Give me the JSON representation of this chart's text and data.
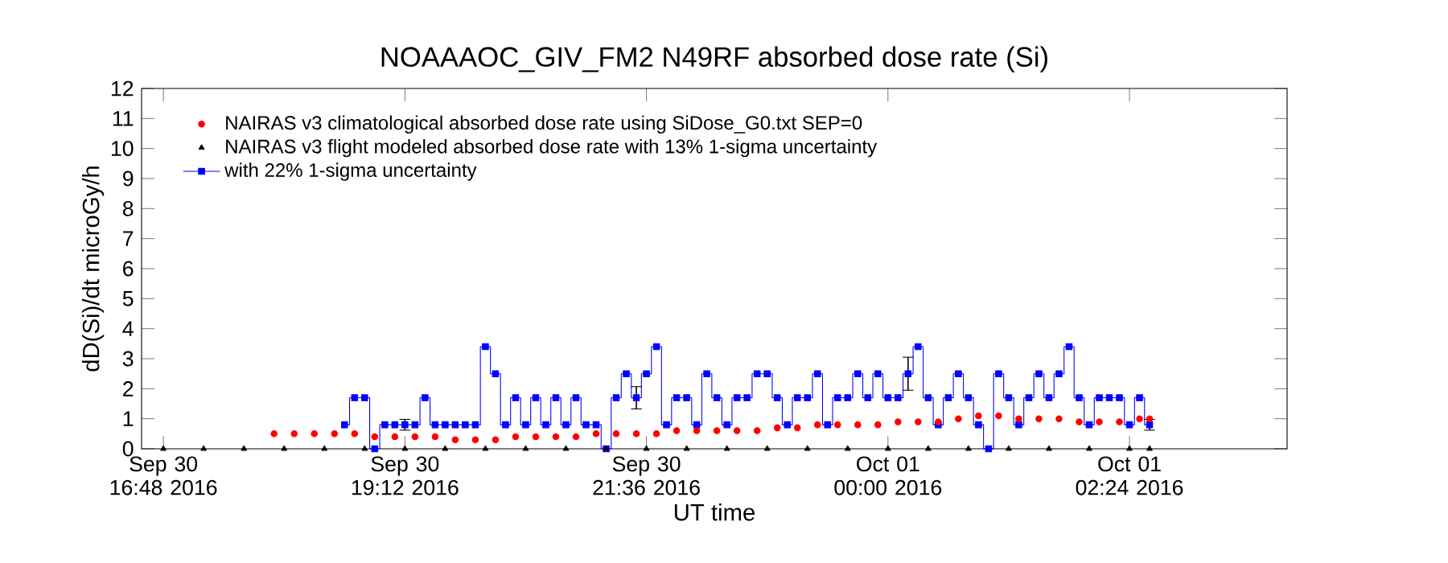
{
  "chart_data": {
    "type": "step",
    "title": "NOAAAOC_GIV_FM2   N49RF  absorbed dose rate (Si)",
    "xlabel": "UT time",
    "ylabel": "dD(Si)/dt microGy/h",
    "xlim": [
      "2016-09-30T16:35",
      "2016-10-01T03:58"
    ],
    "ylim": [
      0,
      12
    ],
    "xticks": [
      {
        "value": "2016-09-30T16:48",
        "label": "Sep 30 16:48 2016"
      },
      {
        "value": "2016-09-30T19:12",
        "label": "Sep 30 19:12 2016"
      },
      {
        "value": "2016-09-30T21:36",
        "label": "Sep 30 21:36 2016"
      },
      {
        "value": "2016-10-01T00:00",
        "label": "Oct 01 00:00 2016"
      },
      {
        "value": "2016-10-01T02:24",
        "label": "Oct 01 02:24 2016"
      }
    ],
    "yticks": [
      0,
      1,
      2,
      3,
      4,
      5,
      6,
      7,
      8,
      9,
      10,
      11,
      12
    ],
    "legend": "top left",
    "series": [
      {
        "name": "NAIRAS v3 climatological absorbed dose rate using SiDose_G0.txt SEP=0",
        "type": "scatter",
        "marker": "circle",
        "color": "#ff0000",
        "x": [
          "2016-09-30T17:54",
          "2016-09-30T18:06",
          "2016-09-30T18:18",
          "2016-09-30T18:30",
          "2016-09-30T18:42",
          "2016-09-30T18:54",
          "2016-09-30T19:06",
          "2016-09-30T19:18",
          "2016-09-30T19:30",
          "2016-09-30T19:42",
          "2016-09-30T19:54",
          "2016-09-30T20:06",
          "2016-09-30T20:18",
          "2016-09-30T20:30",
          "2016-09-30T20:42",
          "2016-09-30T20:54",
          "2016-09-30T21:06",
          "2016-09-30T21:18",
          "2016-09-30T21:30",
          "2016-09-30T21:42",
          "2016-09-30T21:54",
          "2016-09-30T22:06",
          "2016-09-30T22:18",
          "2016-09-30T22:30",
          "2016-09-30T22:42",
          "2016-09-30T22:54",
          "2016-09-30T23:06",
          "2016-09-30T23:18",
          "2016-09-30T23:30",
          "2016-09-30T23:42",
          "2016-09-30T23:54",
          "2016-10-01T00:06",
          "2016-10-01T00:18",
          "2016-10-01T00:30",
          "2016-10-01T00:42",
          "2016-10-01T00:54",
          "2016-10-01T01:06",
          "2016-10-01T01:18",
          "2016-10-01T01:30",
          "2016-10-01T01:42",
          "2016-10-01T01:54",
          "2016-10-01T02:06",
          "2016-10-01T02:18",
          "2016-10-01T02:30",
          "2016-10-01T02:36"
        ],
        "values": [
          0.5,
          0.5,
          0.5,
          0.5,
          0.5,
          0.4,
          0.4,
          0.4,
          0.4,
          0.3,
          0.3,
          0.3,
          0.4,
          0.4,
          0.4,
          0.4,
          0.5,
          0.5,
          0.5,
          0.5,
          0.6,
          0.6,
          0.6,
          0.6,
          0.6,
          0.7,
          0.7,
          0.8,
          0.8,
          0.8,
          0.8,
          0.9,
          0.9,
          0.9,
          1.0,
          1.1,
          1.1,
          1.0,
          1.0,
          1.0,
          0.9,
          0.9,
          0.9,
          1.0,
          1.0
        ]
      },
      {
        "name": "NAIRAS v3 flight modeled absorbed dose rate with 13% 1-sigma uncertainty",
        "type": "scatter",
        "marker": "triangle",
        "color": "#000000",
        "x": [
          "2016-09-30T16:48",
          "2016-09-30T17:12",
          "2016-09-30T17:36",
          "2016-09-30T18:00",
          "2016-09-30T18:24",
          "2016-09-30T18:48",
          "2016-09-30T19:12",
          "2016-09-30T19:36",
          "2016-09-30T20:00",
          "2016-09-30T20:24",
          "2016-09-30T20:48",
          "2016-09-30T21:12",
          "2016-09-30T21:36",
          "2016-09-30T22:00",
          "2016-09-30T22:24",
          "2016-09-30T22:48",
          "2016-09-30T23:12",
          "2016-09-30T23:36",
          "2016-10-01T00:00",
          "2016-10-01T00:24",
          "2016-10-01T00:48",
          "2016-10-01T01:12",
          "2016-10-01T01:36",
          "2016-10-01T02:00",
          "2016-10-01T02:24",
          "2016-10-01T02:36"
        ],
        "values": [
          0,
          0,
          0,
          0,
          0,
          0,
          0,
          0,
          0,
          0,
          0,
          0,
          0,
          0,
          0,
          0,
          0,
          0,
          0,
          0,
          0,
          0,
          0,
          0,
          0,
          0
        ]
      },
      {
        "name": "with 22% 1-sigma uncertainty",
        "marker": "square",
        "color": "#0000ff",
        "x": [
          "2016-09-30T18:36",
          "2016-09-30T18:42",
          "2016-09-30T18:48",
          "2016-09-30T18:54",
          "2016-09-30T19:00",
          "2016-09-30T19:06",
          "2016-09-30T19:12",
          "2016-09-30T19:18",
          "2016-09-30T19:24",
          "2016-09-30T19:30",
          "2016-09-30T19:36",
          "2016-09-30T19:42",
          "2016-09-30T19:48",
          "2016-09-30T19:54",
          "2016-09-30T20:00",
          "2016-09-30T20:06",
          "2016-09-30T20:12",
          "2016-09-30T20:18",
          "2016-09-30T20:24",
          "2016-09-30T20:30",
          "2016-09-30T20:36",
          "2016-09-30T20:42",
          "2016-09-30T20:48",
          "2016-09-30T20:54",
          "2016-09-30T21:00",
          "2016-09-30T21:06",
          "2016-09-30T21:12",
          "2016-09-30T21:18",
          "2016-09-30T21:24",
          "2016-09-30T21:30",
          "2016-09-30T21:36",
          "2016-09-30T21:42",
          "2016-09-30T21:48",
          "2016-09-30T21:54",
          "2016-09-30T22:00",
          "2016-09-30T22:06",
          "2016-09-30T22:12",
          "2016-09-30T22:18",
          "2016-09-30T22:24",
          "2016-09-30T22:30",
          "2016-09-30T22:36",
          "2016-09-30T22:42",
          "2016-09-30T22:48",
          "2016-09-30T22:54",
          "2016-09-30T23:00",
          "2016-09-30T23:06",
          "2016-09-30T23:12",
          "2016-09-30T23:18",
          "2016-09-30T23:24",
          "2016-09-30T23:30",
          "2016-09-30T23:36",
          "2016-09-30T23:42",
          "2016-09-30T23:48",
          "2016-09-30T23:54",
          "2016-10-01T00:00",
          "2016-10-01T00:06",
          "2016-10-01T00:12",
          "2016-10-01T00:18",
          "2016-10-01T00:24",
          "2016-10-01T00:30",
          "2016-10-01T00:36",
          "2016-10-01T00:42",
          "2016-10-01T00:48",
          "2016-10-01T00:54",
          "2016-10-01T01:00",
          "2016-10-01T01:06",
          "2016-10-01T01:12",
          "2016-10-01T01:18",
          "2016-10-01T01:24",
          "2016-10-01T01:30",
          "2016-10-01T01:36",
          "2016-10-01T01:42",
          "2016-10-01T01:48",
          "2016-10-01T01:54",
          "2016-10-01T02:00",
          "2016-10-01T02:06",
          "2016-10-01T02:12",
          "2016-10-01T02:18",
          "2016-10-01T02:24",
          "2016-10-01T02:30",
          "2016-10-01T02:36"
        ],
        "values": [
          0.8,
          1.7,
          1.7,
          0,
          0.8,
          0.8,
          0.8,
          0.8,
          1.7,
          0.8,
          0.8,
          0.8,
          0.8,
          0.8,
          3.4,
          2.5,
          0.8,
          1.7,
          0.8,
          1.7,
          0.8,
          1.7,
          0.8,
          1.7,
          0.8,
          0.8,
          0,
          1.7,
          2.5,
          1.7,
          2.5,
          3.4,
          0.8,
          1.7,
          1.7,
          0.8,
          2.5,
          1.7,
          0.8,
          1.7,
          1.7,
          2.5,
          2.5,
          1.7,
          0.8,
          1.7,
          1.7,
          2.5,
          0.8,
          1.7,
          1.7,
          2.5,
          1.7,
          2.5,
          1.7,
          1.7,
          2.5,
          3.4,
          1.7,
          0.8,
          1.7,
          2.5,
          1.7,
          0.8,
          0,
          2.5,
          1.7,
          0.8,
          1.7,
          2.5,
          1.7,
          2.5,
          3.4,
          1.7,
          0.8,
          1.7,
          1.7,
          1.7,
          0.8,
          1.7,
          0.8
        ],
        "errors": [
          null,
          null,
          null,
          null,
          null,
          null,
          0.18,
          null,
          null,
          null,
          null,
          null,
          null,
          null,
          null,
          null,
          null,
          null,
          null,
          null,
          null,
          null,
          null,
          null,
          null,
          null,
          null,
          null,
          null,
          0.37,
          null,
          null,
          null,
          null,
          null,
          null,
          null,
          null,
          null,
          null,
          null,
          null,
          null,
          null,
          null,
          null,
          null,
          null,
          null,
          null,
          null,
          null,
          null,
          null,
          null,
          null,
          0.55,
          null,
          null,
          null,
          null,
          null,
          null,
          null,
          null,
          null,
          null,
          null,
          null,
          null,
          null,
          null,
          null,
          null,
          null,
          null,
          null,
          null,
          null,
          null,
          0.18
        ]
      }
    ]
  }
}
